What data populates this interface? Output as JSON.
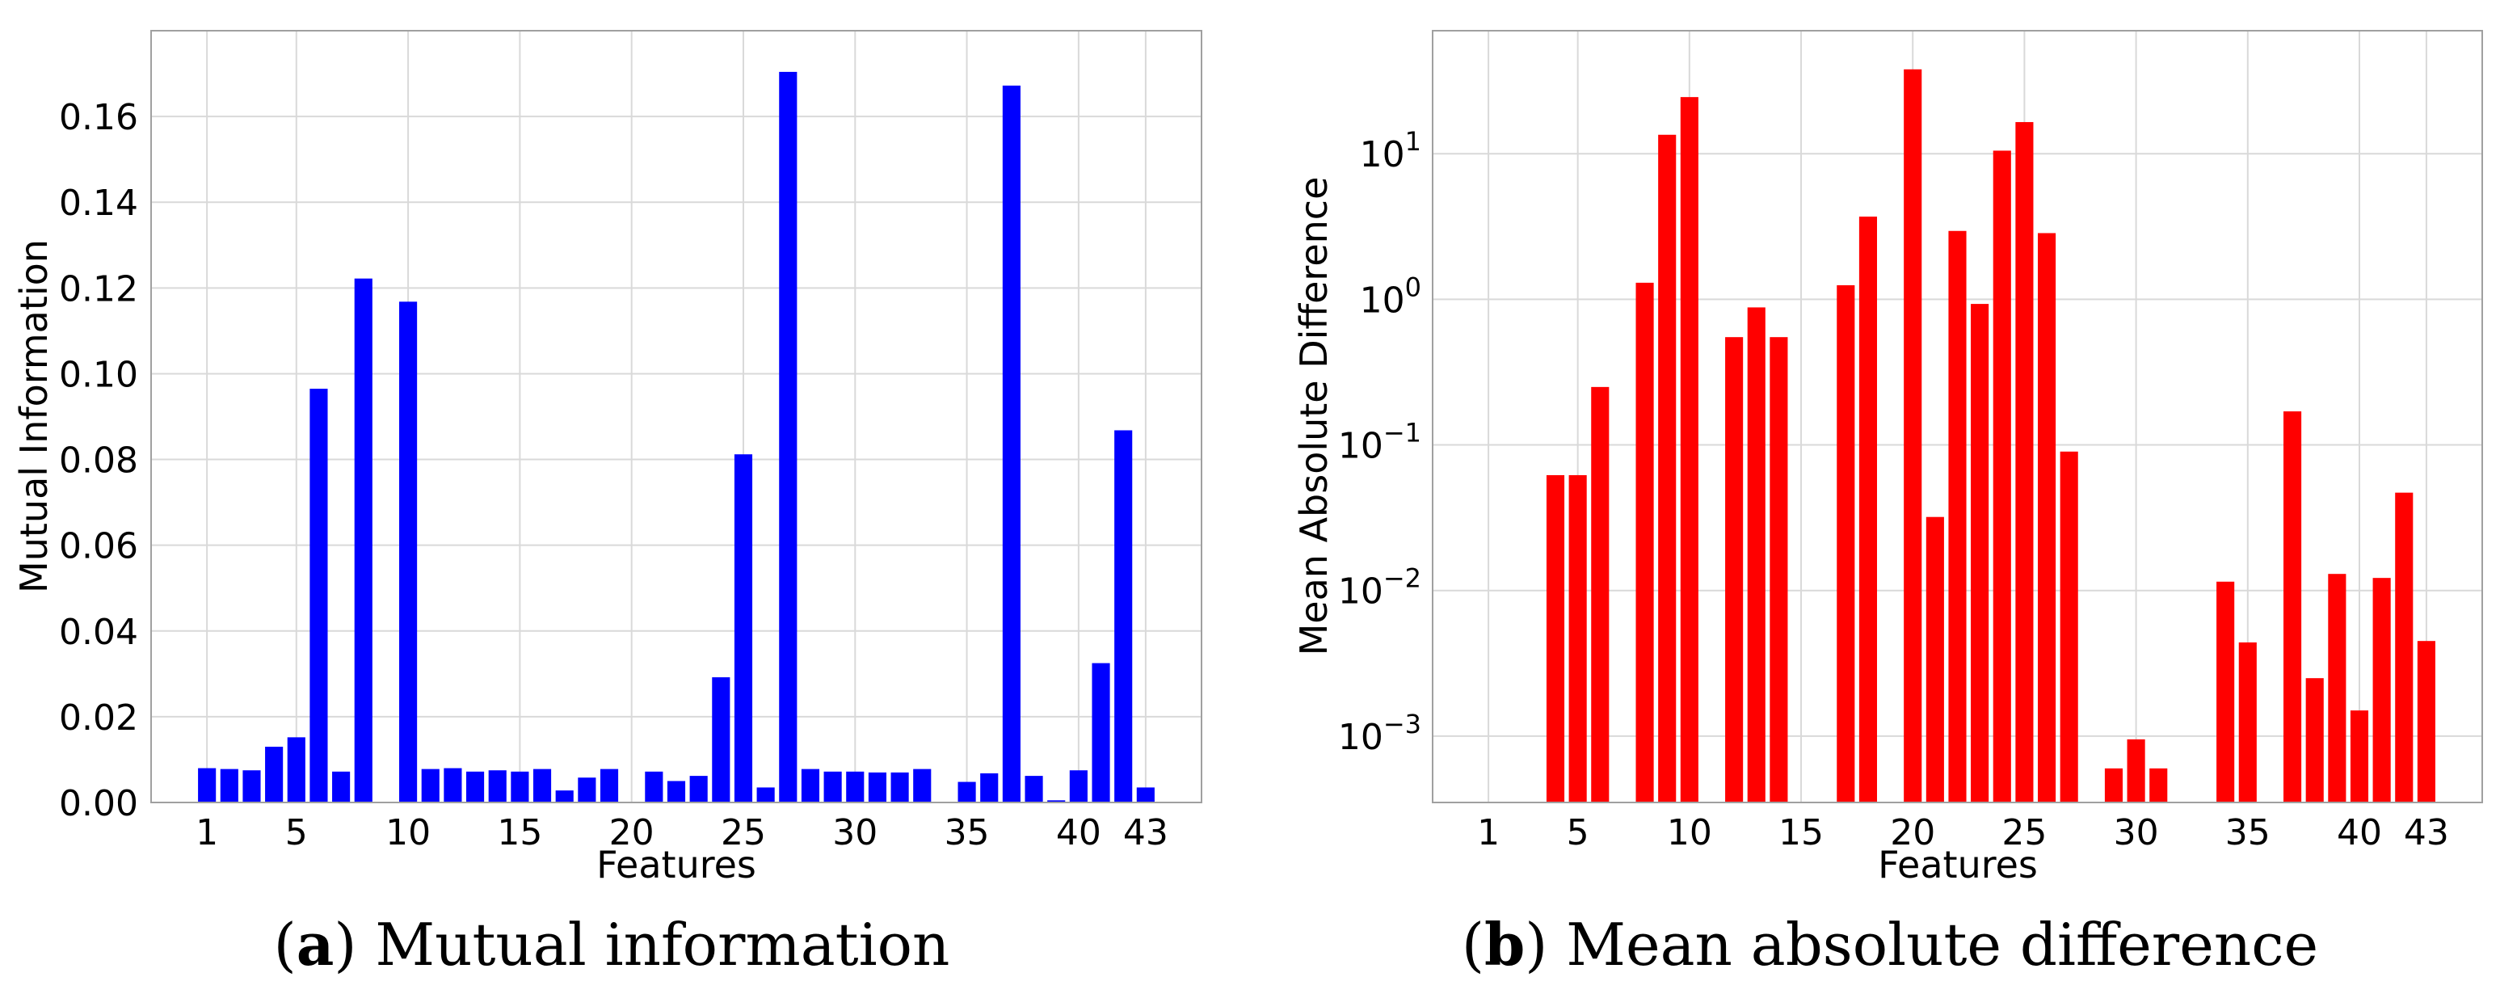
{
  "chart_data": [
    {
      "type": "bar",
      "panel": "a",
      "caption_letter": "a",
      "caption_text": "Mutual information",
      "xlabel": "Features",
      "ylabel": "Mutual Information",
      "color": "#0000ff",
      "yscale": "linear",
      "ylim": [
        0,
        0.18
      ],
      "yticks": [
        "0.00",
        "0.02",
        "0.04",
        "0.06",
        "0.08",
        "0.10",
        "0.12",
        "0.14",
        "0.16"
      ],
      "xticks": [
        1,
        5,
        10,
        15,
        20,
        25,
        30,
        35,
        40,
        43
      ],
      "grid": true,
      "categories": [
        1,
        2,
        3,
        4,
        5,
        6,
        7,
        8,
        9,
        10,
        11,
        12,
        13,
        14,
        15,
        16,
        17,
        18,
        19,
        20,
        21,
        22,
        23,
        24,
        25,
        26,
        27,
        28,
        29,
        30,
        31,
        32,
        33,
        34,
        35,
        36,
        37,
        38,
        39,
        40,
        41,
        42,
        43
      ],
      "values": [
        0.008,
        0.0078,
        0.0075,
        0.013,
        0.0152,
        0.0965,
        0.0072,
        0.1222,
        0,
        0.1168,
        0.0078,
        0.008,
        0.0072,
        0.0075,
        0.0072,
        0.0078,
        0.0028,
        0.0058,
        0.0078,
        0,
        0.0072,
        0.005,
        0.0062,
        0.0292,
        0.0812,
        0.0035,
        0.1704,
        0.0078,
        0.0072,
        0.0072,
        0.007,
        0.007,
        0.0078,
        0,
        0.0048,
        0.0068,
        0.1672,
        0.0062,
        0.0005,
        0.0075,
        0.0325,
        0.0868,
        0.0035
      ]
    },
    {
      "type": "bar",
      "panel": "b",
      "caption_letter": "b",
      "caption_text": "Mean absolute difference",
      "xlabel": "Features",
      "ylabel": "Mean Absolute Difference",
      "color": "#ff0000",
      "yscale": "log",
      "ylim": [
        0.00035,
        70
      ],
      "yticks": [
        {
          "base": "10",
          "exp": "−3",
          "value": 0.001
        },
        {
          "base": "10",
          "exp": "−2",
          "value": 0.01
        },
        {
          "base": "10",
          "exp": "−1",
          "value": 0.1
        },
        {
          "base": "10",
          "exp": "0",
          "value": 1
        },
        {
          "base": "10",
          "exp": "1",
          "value": 10
        }
      ],
      "xticks": [
        1,
        5,
        10,
        15,
        20,
        25,
        30,
        35,
        40,
        43
      ],
      "grid": true,
      "categories": [
        1,
        2,
        3,
        4,
        5,
        6,
        7,
        8,
        9,
        10,
        11,
        12,
        13,
        14,
        15,
        16,
        17,
        18,
        19,
        20,
        21,
        22,
        23,
        24,
        25,
        26,
        27,
        28,
        29,
        30,
        31,
        32,
        33,
        34,
        35,
        36,
        37,
        38,
        39,
        40,
        41,
        42,
        43
      ],
      "values": [
        null,
        null,
        null,
        0.062,
        0.062,
        0.25,
        null,
        1.3,
        13.5,
        24.5,
        null,
        0.55,
        0.88,
        0.55,
        null,
        null,
        1.25,
        3.7,
        null,
        38,
        0.032,
        2.95,
        0.93,
        10.5,
        16.5,
        2.85,
        0.09,
        null,
        0.0006,
        0.00095,
        0.0006,
        null,
        null,
        0.0115,
        0.0044,
        null,
        0.17,
        0.0025,
        0.013,
        0.0015,
        0.0122,
        0.047,
        0.0045
      ]
    }
  ]
}
